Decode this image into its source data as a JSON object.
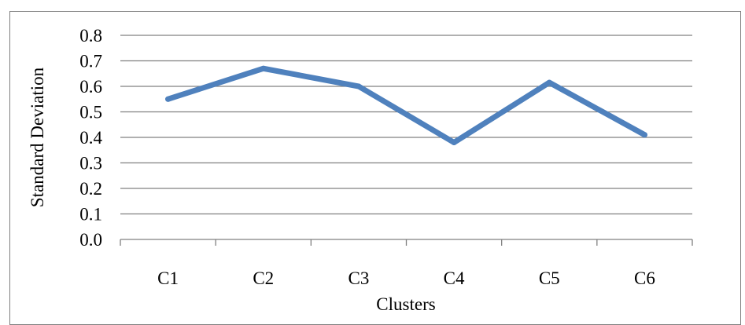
{
  "chart_data": {
    "type": "line",
    "categories": [
      "C1",
      "C2",
      "C3",
      "C4",
      "C5",
      "C6"
    ],
    "series": [
      {
        "values": [
          0.55,
          0.67,
          0.6,
          0.38,
          0.615,
          0.41
        ],
        "color": "#4f81bd"
      }
    ],
    "title": "",
    "xlabel": "Clusters",
    "ylabel": "Standard Deviation",
    "ylim": [
      0,
      0.8
    ],
    "yticks": [
      "0.0",
      "0.1",
      "0.2",
      "0.3",
      "0.4",
      "0.5",
      "0.6",
      "0.7",
      "0.8"
    ],
    "grid": true,
    "legend": "none",
    "colors": {
      "grid": "#808080",
      "border": "#7f7f7f"
    }
  }
}
